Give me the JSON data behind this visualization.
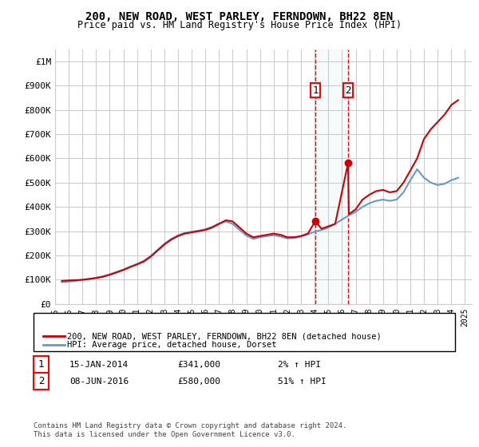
{
  "title": "200, NEW ROAD, WEST PARLEY, FERNDOWN, BH22 8EN",
  "subtitle": "Price paid vs. HM Land Registry's House Price Index (HPI)",
  "legend_line1": "200, NEW ROAD, WEST PARLEY, FERNDOWN, BH22 8EN (detached house)",
  "legend_line2": "HPI: Average price, detached house, Dorset",
  "footnote": "Contains HM Land Registry data © Crown copyright and database right 2024.\nThis data is licensed under the Open Government Licence v3.0.",
  "annotation1_label": "1",
  "annotation1_date": "15-JAN-2014",
  "annotation1_price": "£341,000",
  "annotation1_hpi": "2% ↑ HPI",
  "annotation2_label": "2",
  "annotation2_date": "08-JUN-2016",
  "annotation2_price": "£580,000",
  "annotation2_hpi": "51% ↑ HPI",
  "ylim": [
    0,
    1050000
  ],
  "yticks": [
    0,
    100000,
    200000,
    300000,
    400000,
    500000,
    600000,
    700000,
    800000,
    900000,
    1000000
  ],
  "ytick_labels": [
    "£0",
    "£100K",
    "£200K",
    "£300K",
    "£400K",
    "£500K",
    "£600K",
    "£700K",
    "£800K",
    "£900K",
    "£1M"
  ],
  "house_color": "#cc0000",
  "hpi_color": "#6699cc",
  "background_color": "#ffffff",
  "grid_color": "#cccccc",
  "sale1_x": 2014.04,
  "sale1_y": 341000,
  "sale2_x": 2016.44,
  "sale2_y": 580000,
  "vline1_x": 2014.04,
  "vline2_x": 2016.44,
  "xmin": 1995,
  "xmax": 2025.5,
  "xticks": [
    1995,
    1996,
    1997,
    1998,
    1999,
    2000,
    2001,
    2002,
    2003,
    2004,
    2005,
    2006,
    2007,
    2008,
    2009,
    2010,
    2011,
    2012,
    2013,
    2014,
    2015,
    2016,
    2017,
    2018,
    2019,
    2020,
    2021,
    2022,
    2023,
    2024,
    2025
  ],
  "house_prices_x": [
    1995.5,
    1996.0,
    1996.5,
    1997.0,
    1997.5,
    1998.0,
    1998.5,
    1999.0,
    1999.5,
    2000.0,
    2000.5,
    2001.0,
    2001.5,
    2002.0,
    2002.5,
    2003.0,
    2003.5,
    2004.0,
    2004.5,
    2005.0,
    2005.5,
    2006.0,
    2006.5,
    2007.0,
    2007.5,
    2008.0,
    2008.5,
    2009.0,
    2009.5,
    2010.0,
    2010.5,
    2011.0,
    2011.5,
    2012.0,
    2012.5,
    2013.0,
    2013.5,
    2014.04,
    2014.5,
    2015.0,
    2015.5,
    2016.44,
    2016.5,
    2017.0,
    2017.5,
    2018.0,
    2018.5,
    2019.0,
    2019.5,
    2020.0,
    2020.5,
    2021.0,
    2021.5,
    2022.0,
    2022.5,
    2023.0,
    2023.5,
    2024.0,
    2024.5
  ],
  "house_prices_y": [
    95000,
    97000,
    98000,
    100000,
    103000,
    107000,
    112000,
    120000,
    130000,
    140000,
    152000,
    163000,
    175000,
    195000,
    220000,
    245000,
    265000,
    280000,
    290000,
    295000,
    300000,
    305000,
    315000,
    330000,
    345000,
    340000,
    315000,
    290000,
    275000,
    280000,
    285000,
    290000,
    285000,
    275000,
    275000,
    280000,
    290000,
    341000,
    310000,
    320000,
    330000,
    580000,
    370000,
    390000,
    430000,
    450000,
    465000,
    470000,
    460000,
    465000,
    500000,
    550000,
    600000,
    680000,
    720000,
    750000,
    780000,
    820000,
    840000
  ],
  "hpi_x": [
    1995.5,
    1996.0,
    1996.5,
    1997.0,
    1997.5,
    1998.0,
    1998.5,
    1999.0,
    1999.5,
    2000.0,
    2000.5,
    2001.0,
    2001.5,
    2002.0,
    2002.5,
    2003.0,
    2003.5,
    2004.0,
    2004.5,
    2005.0,
    2005.5,
    2006.0,
    2006.5,
    2007.0,
    2007.5,
    2008.0,
    2008.5,
    2009.0,
    2009.5,
    2010.0,
    2010.5,
    2011.0,
    2011.5,
    2012.0,
    2012.5,
    2013.0,
    2013.5,
    2014.0,
    2014.5,
    2015.0,
    2015.5,
    2016.0,
    2016.5,
    2017.0,
    2017.5,
    2018.0,
    2018.5,
    2019.0,
    2019.5,
    2020.0,
    2020.5,
    2021.0,
    2021.5,
    2022.0,
    2022.5,
    2023.0,
    2023.5,
    2024.0,
    2024.5
  ],
  "hpi_y": [
    90000,
    92000,
    95000,
    99000,
    103000,
    108000,
    114000,
    122000,
    132000,
    142000,
    154000,
    165000,
    178000,
    198000,
    223000,
    248000,
    268000,
    283000,
    293000,
    298000,
    302000,
    308000,
    318000,
    332000,
    340000,
    330000,
    305000,
    282000,
    268000,
    275000,
    280000,
    283000,
    278000,
    270000,
    272000,
    278000,
    287000,
    298000,
    305000,
    315000,
    330000,
    348000,
    365000,
    380000,
    400000,
    415000,
    425000,
    430000,
    425000,
    430000,
    460000,
    510000,
    555000,
    520000,
    500000,
    490000,
    495000,
    510000,
    520000
  ]
}
